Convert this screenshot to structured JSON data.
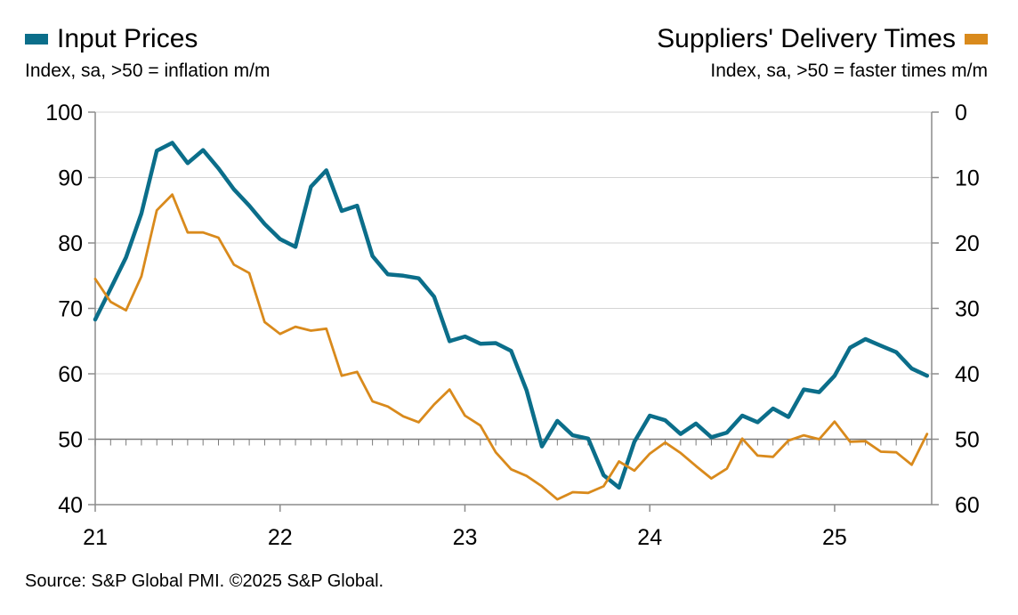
{
  "legend": {
    "left": {
      "label": "Input Prices",
      "subtitle": "Index, sa, >50 = inflation m/m",
      "color": "#0b6e8a"
    },
    "right": {
      "label": "Suppliers' Delivery Times",
      "subtitle": "Index, sa, >50 = faster times m/m",
      "color": "#d98a1c"
    }
  },
  "source": "Source: S&P Global PMI. ©2025 S&P Global.",
  "chart_data": {
    "type": "line",
    "x_tick_labels": [
      "21",
      "22",
      "23",
      "24",
      "25"
    ],
    "left_axis": {
      "ticks": [
        40,
        50,
        60,
        70,
        80,
        90,
        100
      ],
      "ylim": [
        40,
        100
      ]
    },
    "right_axis": {
      "ticks": [
        0,
        10,
        20,
        30,
        40,
        50,
        60
      ],
      "ylim": [
        0,
        60
      ],
      "inverted": true
    },
    "reference_line": 50,
    "grid": true,
    "x": [
      "2021-01",
      "2021-02",
      "2021-03",
      "2021-04",
      "2021-05",
      "2021-06",
      "2021-07",
      "2021-08",
      "2021-09",
      "2021-10",
      "2021-11",
      "2021-12",
      "2022-01",
      "2022-02",
      "2022-03",
      "2022-04",
      "2022-05",
      "2022-06",
      "2022-07",
      "2022-08",
      "2022-09",
      "2022-10",
      "2022-11",
      "2022-12",
      "2023-01",
      "2023-02",
      "2023-03",
      "2023-04",
      "2023-05",
      "2023-06",
      "2023-07",
      "2023-08",
      "2023-09",
      "2023-10",
      "2023-11",
      "2023-12",
      "2024-01",
      "2024-02",
      "2024-03",
      "2024-04",
      "2024-05",
      "2024-06",
      "2024-07",
      "2024-08",
      "2024-09",
      "2024-10",
      "2024-11",
      "2024-12",
      "2025-01",
      "2025-02",
      "2025-03",
      "2025-04",
      "2025-05",
      "2025-06",
      "2025-07"
    ],
    "series": [
      {
        "name": "Input Prices",
        "axis": "left",
        "color": "#0b6e8a",
        "values": [
          68.3,
          73.0,
          77.8,
          84.5,
          94.1,
          95.3,
          92.2,
          94.2,
          91.4,
          88.2,
          85.7,
          82.9,
          80.6,
          79.4,
          88.6,
          91.1,
          84.9,
          85.7,
          78.0,
          75.2,
          75.0,
          74.6,
          71.8,
          65.0,
          65.7,
          64.6,
          64.7,
          63.5,
          57.5,
          48.9,
          52.8,
          50.6,
          50.1,
          44.5,
          42.6,
          49.6,
          53.6,
          52.9,
          50.8,
          52.4,
          50.3,
          51.0,
          53.6,
          52.6,
          54.7,
          53.4,
          57.6,
          57.2,
          59.7,
          64.0,
          65.3,
          64.3,
          63.3,
          60.8,
          59.7
        ]
      },
      {
        "name": "Suppliers' Delivery Times",
        "axis": "right",
        "color": "#d98a1c",
        "values": [
          25.5,
          29.0,
          30.3,
          25.1,
          15.0,
          12.6,
          18.4,
          18.4,
          19.2,
          23.3,
          24.6,
          32.1,
          33.9,
          32.8,
          33.4,
          33.1,
          40.3,
          39.7,
          44.2,
          45.0,
          46.5,
          47.4,
          44.7,
          42.4,
          46.4,
          47.9,
          52.0,
          54.6,
          55.6,
          57.2,
          59.2,
          58.1,
          58.2,
          57.2,
          53.4,
          54.8,
          52.2,
          50.5,
          52.1,
          54.1,
          56.0,
          54.5,
          49.9,
          52.5,
          52.7,
          50.2,
          49.4,
          50.0,
          47.3,
          50.4,
          50.3,
          51.9,
          52.0,
          53.9,
          49.2
        ]
      }
    ]
  }
}
